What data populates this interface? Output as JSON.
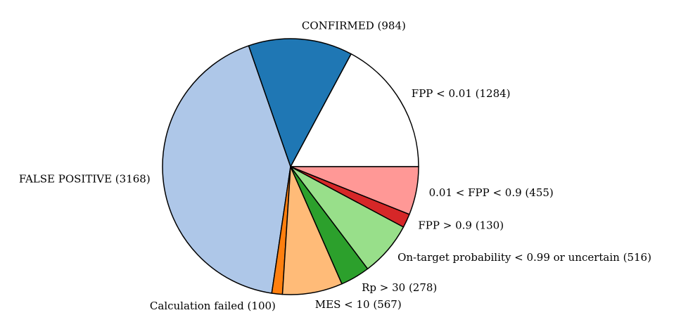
{
  "chart_data": {
    "type": "pie",
    "title": "",
    "start_angle_deg": 0,
    "direction": "counterclockwise",
    "slices": [
      {
        "label": "FPP < 0.01 (1284)",
        "value": 1284,
        "color": "#ffffff"
      },
      {
        "label": "CONFIRMED (984)",
        "value": 984,
        "color": "#1f77b4"
      },
      {
        "label": "FALSE POSITIVE (3168)",
        "value": 3168,
        "color": "#aec7e8"
      },
      {
        "label": "Calculation failed (100)",
        "value": 100,
        "color": "#ff7f0e"
      },
      {
        "label": "MES < 10 (567)",
        "value": 567,
        "color": "#ffbb78"
      },
      {
        "label": "Rp > 30 (278)",
        "value": 278,
        "color": "#2ca02c"
      },
      {
        "label": "On-target probability < 0.99 or uncertain (516)",
        "value": 516,
        "color": "#98df8a"
      },
      {
        "label": "FPP > 0.9 (130)",
        "value": 130,
        "color": "#d62728"
      },
      {
        "label": "0.01 < FPP < 0.9 (455)",
        "value": 455,
        "color": "#ff9896"
      }
    ],
    "edge_color": "#000000"
  }
}
